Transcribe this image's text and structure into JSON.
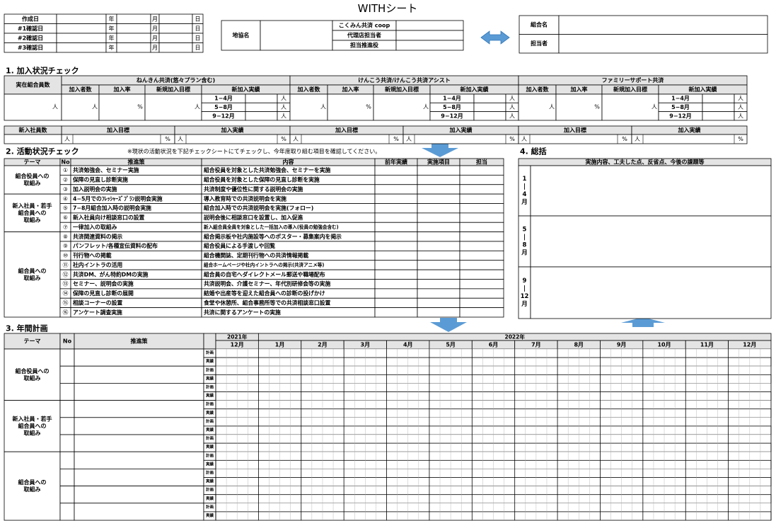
{
  "title": "WITHシート",
  "dates": {
    "rows": [
      "作成日",
      "#1確認日",
      "#2確認日",
      "#3確認日"
    ],
    "units": [
      "年",
      "月",
      "日"
    ]
  },
  "agency": {
    "label": "地協名",
    "rows": [
      "こくみん共済 coop",
      "代理店担当者",
      "担当推進役"
    ]
  },
  "union": {
    "rows": [
      "組合名",
      "担当者"
    ]
  },
  "section1": {
    "title": "1. 加入状況チェック",
    "member_label": "実在組合員数",
    "person": "人",
    "percent": "%",
    "products": [
      "ねんきん共済(悠々プラン含む)",
      "けんこう共済/けんこう共済アシスト",
      "ファミリーサポート共済"
    ],
    "columns": [
      "加入者数",
      "加入率",
      "新規加入目標",
      "新加入実績"
    ],
    "periods": [
      "1−4月",
      "5−8月",
      "9−12月"
    ],
    "new_label": "新入社員数",
    "new_columns": [
      "加入目標",
      "加入実績"
    ]
  },
  "section2": {
    "title": "2. 活動状況チェック",
    "note": "※現状の活動状況を下記チェックシートにてチェックし、今年度取り組む項目を確認してください。",
    "headers": [
      "テーマ",
      "No",
      "推進策",
      "内容",
      "前年実績",
      "実施項目",
      "担当"
    ],
    "groups": [
      {
        "theme": [
          "組合役員への",
          "取組み"
        ],
        "items": [
          {
            "no": "①",
            "measure": "共済勉強会、セミナー実施",
            "content": "組合役員を対象とした共済勉強会、セミナーを実施"
          },
          {
            "no": "②",
            "measure": "保障の見直し診断実施",
            "content": "組合役員を対象とした保障の見直し診断を実施"
          },
          {
            "no": "③",
            "measure": "加入説明会の実施",
            "content": "共済制度や優位性に関する説明会の実施"
          }
        ]
      },
      {
        "theme": [
          "新入社員・若手",
          "組合員への",
          "取組み"
        ],
        "items": [
          {
            "no": "④",
            "measure": "4−5月でのﾌﾚｯｼｬｰｽﾞﾌﾟﾗﾝ説明会実施",
            "content": "導入教育時での共済説明会を実施"
          },
          {
            "no": "⑤",
            "measure": "7−8月組合加入時の説明会実施",
            "content": "組合加入時での共済説明会を実施(フォロー)"
          },
          {
            "no": "⑥",
            "measure": "新入社員向け相談窓口の設置",
            "content": "説明会後に相談窓口を設置し、加入促進"
          },
          {
            "no": "⑦",
            "measure": "一律加入の取組み",
            "content": "新入組合員全員を対象とした一括加入の導入(役員の勉強会含む)"
          }
        ]
      },
      {
        "theme": [
          "組合員への",
          "取組み"
        ],
        "items": [
          {
            "no": "⑧",
            "measure": "共済関連資料の掲示",
            "content": "組合掲示板や社内施設等へのポスター・募集案内を掲示"
          },
          {
            "no": "⑨",
            "measure": "パンフレット/各種宣伝資料の配布",
            "content": "組合役員による手渡しや回覧"
          },
          {
            "no": "⑩",
            "measure": "刊行物への掲載",
            "content": "組合機関誌、定期刊行物への共済情報掲載"
          },
          {
            "no": "⑪",
            "measure": "社内イントラの活用",
            "content": "組合ホームページや社内イントラへの掲示(共済アニメ等)"
          },
          {
            "no": "⑫",
            "measure": "共済DM、がん特約DMの実施",
            "content": "組合員の自宅へダイレクトメール郵送や職場配布"
          },
          {
            "no": "⑬",
            "measure": "セミナー、説明会の実施",
            "content": "共済説明会、介護セミナー、年代別研修会等の実施"
          },
          {
            "no": "⑭",
            "measure": "保障の見直し診断の展開",
            "content": "結婚や出産等を迎えた組合員への診断の投げかけ"
          },
          {
            "no": "⑮",
            "measure": "相談コーナーの設置",
            "content": "食堂や休憩所、組合事務所等での共済相談窓口設置"
          },
          {
            "no": "⑯",
            "measure": "アンケート調査実施",
            "content": "共済に関するアンケートの実施"
          }
        ]
      }
    ]
  },
  "section3": {
    "title": "3. 年間計画",
    "headers": [
      "テーマ",
      "No",
      "推進策"
    ],
    "years": [
      "2021年",
      "2022年"
    ],
    "months": [
      "12月",
      "1月",
      "2月",
      "3月",
      "4月",
      "5月",
      "6月",
      "7月",
      "8月",
      "9月",
      "10月",
      "11月",
      "12月"
    ],
    "groups": [
      {
        "theme": [
          "組合役員への",
          "取組み"
        ],
        "rows": [
          [
            "計画",
            "実績"
          ],
          [
            "計画",
            "実績"
          ],
          [
            "計画",
            "実績"
          ]
        ]
      },
      {
        "theme": [
          "新入社員・若手",
          "組合員への",
          "取組み"
        ],
        "rows": [
          [
            "計画",
            "実績"
          ],
          [
            "計画",
            "実績"
          ],
          [
            "計画",
            "実績"
          ]
        ]
      },
      {
        "theme": [
          "組合員への",
          "取組み"
        ],
        "rows": [
          [
            "計画",
            "実績"
          ],
          [
            "計画",
            "実績"
          ],
          [
            "計画",
            "実績"
          ],
          [
            "計画",
            "実績"
          ]
        ]
      }
    ]
  },
  "section4": {
    "title": "4. 総括",
    "header": "実施内容、工夫した点、反省点、今後の課題等",
    "periods": [
      [
        "1",
        "|",
        "4",
        "月"
      ],
      [
        "5",
        "|",
        "8",
        "月"
      ],
      [
        "9",
        "|",
        "12",
        "月"
      ]
    ]
  }
}
